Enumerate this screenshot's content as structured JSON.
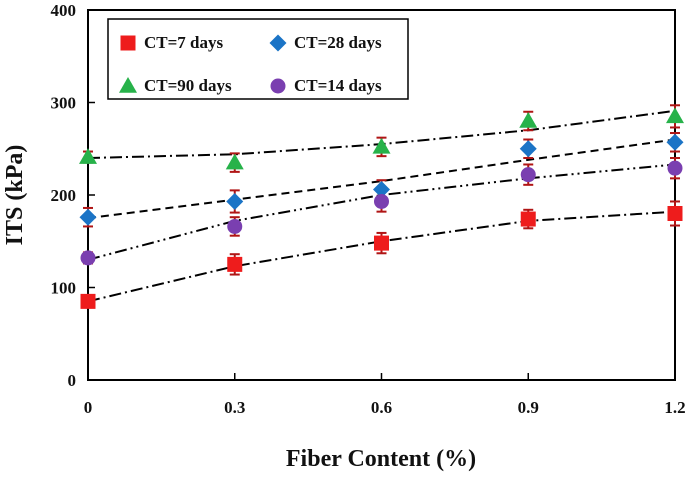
{
  "chart_data": {
    "type": "scatter",
    "title": "",
    "xlabel": "Fiber Content (%)",
    "ylabel": "ITS (kPa)",
    "x_ticks": [
      "0",
      "0.3",
      "0.6",
      "0.9",
      "1.2"
    ],
    "y_ticks": [
      "0",
      "100",
      "200",
      "300",
      "400"
    ],
    "xlim": [
      0,
      1.2
    ],
    "ylim": [
      0,
      400
    ],
    "grid": false,
    "legend_position": "top-left",
    "x": [
      0,
      0.3,
      0.6,
      0.9,
      1.2
    ],
    "series": [
      {
        "name": "CT=7 days",
        "marker": "square",
        "color": "#ee1c1c",
        "values": [
          85,
          125,
          148,
          174,
          180
        ],
        "error": [
          6,
          11,
          11,
          10,
          13
        ],
        "trend": [
          85,
          123,
          150,
          172,
          182
        ],
        "trend_style": "dash-dot"
      },
      {
        "name": "CT=28 days",
        "marker": "diamond",
        "color": "#1b74c6",
        "values": [
          176,
          193,
          206,
          250,
          257
        ],
        "error": [
          10,
          12,
          10,
          10,
          10
        ],
        "trend": [
          175,
          195,
          215,
          238,
          260
        ],
        "trend_style": "dashed"
      },
      {
        "name": "CT=90 days",
        "marker": "triangle",
        "color": "#27b24a",
        "values": [
          241,
          235,
          252,
          280,
          285
        ],
        "error": [
          6,
          10,
          10,
          10,
          12
        ],
        "trend": [
          240,
          244,
          255,
          270,
          291
        ],
        "trend_style": "dash-dot"
      },
      {
        "name": "CT=14 days",
        "marker": "circle",
        "color": "#7a3fb0",
        "values": [
          132,
          166,
          193,
          222,
          229
        ],
        "error": [
          6,
          10,
          11,
          11,
          11
        ],
        "trend": [
          130,
          172,
          200,
          218,
          233
        ],
        "trend_style": "dash-dot-dot"
      }
    ]
  }
}
